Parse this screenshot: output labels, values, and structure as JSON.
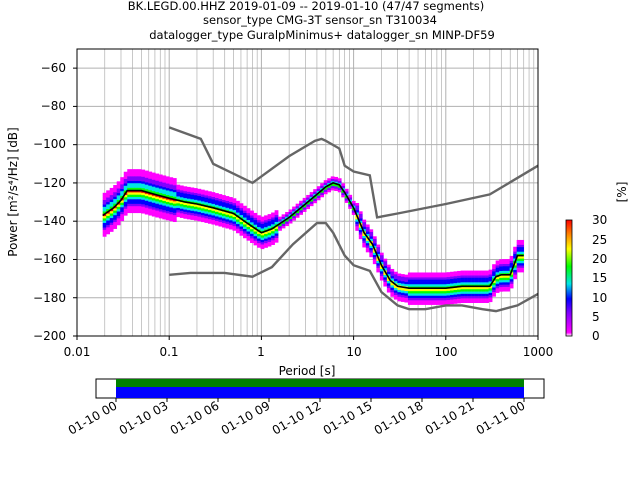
{
  "title_lines": [
    "BK.LEGD.00.HHZ   2019-01-09 -- 2019-01-10  (47/47 segments)",
    "sensor_type CMG-3T sensor_sn T310034",
    "datalogger_type GuralpMinimus+ datalogger_sn MINP-DF59"
  ],
  "colorbar": {
    "label": "[%]",
    "ticks": [
      "0",
      "5",
      "10",
      "15",
      "20",
      "25",
      "30"
    ],
    "range": [
      0,
      30
    ]
  },
  "timeline": {
    "ticks": [
      "01-10 00",
      "01-10 03",
      "01-10 06",
      "01-10 09",
      "01-10 12",
      "01-10 15",
      "01-10 18",
      "01-10 21",
      "01-11 00"
    ],
    "colors": {
      "top": "#008000",
      "bottom": "#0000ff"
    }
  },
  "colors": {
    "mean": "#000000",
    "noise_model": "#666666",
    "grid": "#b0b0b0"
  },
  "chart_data": {
    "type": "heatmap",
    "xlabel": "Period [s]",
    "ylabel": "Power [m²/s⁴/Hz] [dB]",
    "x_scale": "log",
    "xlim": [
      0.01,
      1000
    ],
    "ylim": [
      -200,
      -50
    ],
    "x_ticks": [
      "0.01",
      "0.1",
      "1",
      "10",
      "100",
      "1000"
    ],
    "y_ticks": [
      "−60",
      "−80",
      "−100",
      "−120",
      "−140",
      "−160",
      "−180",
      "−200"
    ],
    "y_tick_values": [
      -60,
      -80,
      -100,
      -120,
      -140,
      -160,
      -180,
      -200
    ],
    "grid": true,
    "mean_curve": {
      "x": [
        0.019,
        0.025,
        0.03,
        0.035,
        0.05,
        0.07,
        0.1,
        0.15,
        0.2,
        0.3,
        0.5,
        0.7,
        1.0,
        1.3,
        2,
        3,
        4,
        5,
        6,
        7,
        8,
        10,
        13,
        16,
        20,
        25,
        30,
        40,
        50,
        70,
        100,
        150,
        200,
        300,
        350,
        400,
        500,
        600,
        700
      ],
      "y": [
        -137,
        -133,
        -129,
        -124,
        -124,
        -126,
        -128,
        -130,
        -131,
        -133,
        -136,
        -141,
        -146,
        -144,
        -138,
        -131,
        -126,
        -122,
        -120,
        -121,
        -125,
        -133,
        -146,
        -152,
        -163,
        -171,
        -174,
        -175,
        -175,
        -175,
        -175,
        -174,
        -174,
        -174,
        -169,
        -168,
        -168,
        -158,
        -158
      ]
    },
    "nlnm": {
      "x": [
        0.1,
        0.17,
        0.4,
        0.8,
        1.3,
        2.2,
        4,
        5,
        6,
        8,
        10,
        15,
        20,
        30,
        40,
        60,
        100,
        150,
        250,
        350,
        600,
        1000
      ],
      "y": [
        -168,
        -167,
        -167,
        -169,
        -164,
        -152,
        -141,
        -141,
        -146,
        -158,
        -163,
        -166,
        -177,
        -184,
        -186,
        -186,
        -184,
        -184,
        -186,
        -187,
        -184,
        -178
      ]
    },
    "nhnm": {
      "x": [
        0.1,
        0.22,
        0.3,
        0.8,
        2,
        3.8,
        4.5,
        5,
        7,
        8,
        10,
        15,
        18,
        30,
        100,
        300,
        1000
      ],
      "y": [
        -91,
        -97,
        -110,
        -120,
        -106,
        -98,
        -97,
        -98,
        -102,
        -111,
        -114,
        -116,
        -138,
        -136,
        -131,
        -126,
        -111
      ]
    }
  }
}
